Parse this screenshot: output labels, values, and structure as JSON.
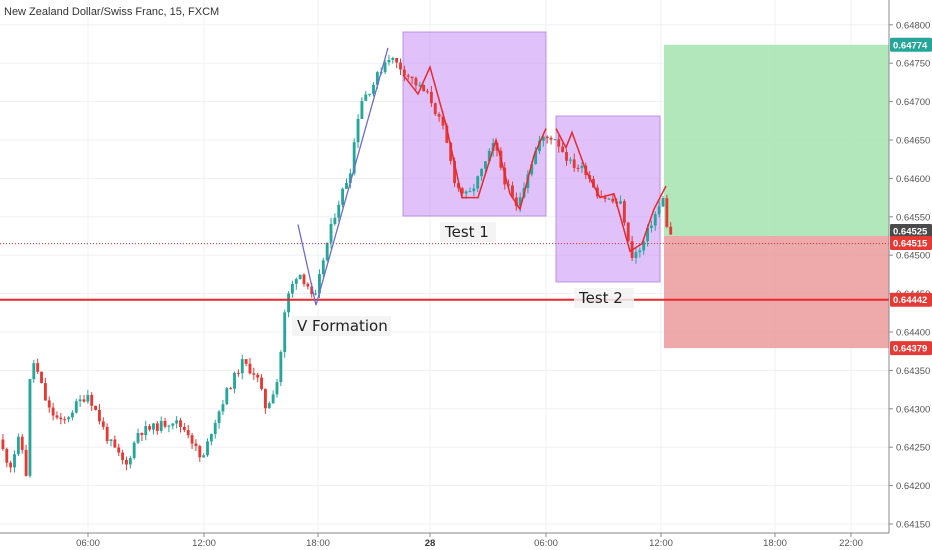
{
  "chart_data": {
    "type": "candlestick",
    "title": "New Zealand Dollar/Swiss Franc, 15, FXCM",
    "y_ticks": [
      "0.64800",
      "0.64750",
      "0.64700",
      "0.64650",
      "0.64600",
      "0.64550",
      "0.64500",
      "0.64450",
      "0.64400",
      "0.64350",
      "0.64300",
      "0.64250",
      "0.64200",
      "0.64150"
    ],
    "x_ticks": [
      {
        "label": "06:00",
        "bold": false
      },
      {
        "label": "12:00",
        "bold": false
      },
      {
        "label": "18:00",
        "bold": false
      },
      {
        "label": "28",
        "bold": true
      },
      {
        "label": "06:00",
        "bold": false
      },
      {
        "label": "12:00",
        "bold": false
      },
      {
        "label": "18:00",
        "bold": false
      },
      {
        "label": "22:00",
        "bold": false
      }
    ],
    "ylim": [
      0.64135,
      0.6482
    ],
    "grid": true,
    "price_badges": [
      {
        "label": "0.64774",
        "color": "#26a69a"
      },
      {
        "label": "0.64525",
        "color": "#4a4a4a"
      },
      {
        "label": "0.64515",
        "color": "#e53935"
      },
      {
        "label": "0.64442",
        "color": "#e53935"
      },
      {
        "label": "0.64379",
        "color": "#e53935"
      }
    ],
    "annotations": [
      {
        "text": "V Formation"
      },
      {
        "text": "Test 1"
      },
      {
        "text": "Test 2"
      }
    ],
    "levels": {
      "support": 0.64442,
      "current": 0.64515,
      "take_profit": 0.64774,
      "entry": 0.64525,
      "stop_loss": 0.64379
    },
    "colors": {
      "up": "#26a69a",
      "down": "#e53935",
      "box": "#cf9ff7",
      "profit": "#a5e3b0",
      "loss": "#eb9b9b",
      "line": "#e8282b"
    }
  }
}
